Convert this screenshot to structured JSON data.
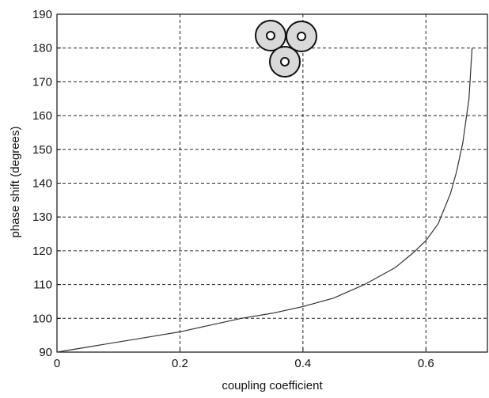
{
  "chart_data": {
    "type": "line",
    "title": "",
    "xlabel": "coupling coefficient",
    "ylabel": "phase shift (degrees)",
    "xlim": [
      0,
      0.7
    ],
    "ylim": [
      90,
      190
    ],
    "xticks": [
      0,
      0.2,
      0.4,
      0.6
    ],
    "xtick_labels": [
      "0",
      "0.2",
      "0.4",
      "0.6"
    ],
    "yticks": [
      90,
      100,
      110,
      120,
      130,
      140,
      150,
      160,
      170,
      180,
      190
    ],
    "ytick_labels": [
      "90",
      "100",
      "110",
      "120",
      "130",
      "140",
      "150",
      "160",
      "170",
      "180",
      "190"
    ],
    "grid": true,
    "grid_style": "dashed",
    "series": [
      {
        "color": "#333333",
        "x": [
          0,
          0.05,
          0.1,
          0.15,
          0.2,
          0.25,
          0.3,
          0.35,
          0.4,
          0.45,
          0.5,
          0.55,
          0.58,
          0.6,
          0.62,
          0.64,
          0.65,
          0.66,
          0.67,
          0.675
        ],
        "y": [
          90,
          91.5,
          93,
          94.5,
          96,
          98,
          100,
          101.5,
          103.5,
          106,
          110,
          115,
          119.5,
          123,
          128,
          137,
          143.5,
          152,
          165,
          180
        ]
      }
    ],
    "inset_icon": "three-circle-conductor-icon"
  }
}
